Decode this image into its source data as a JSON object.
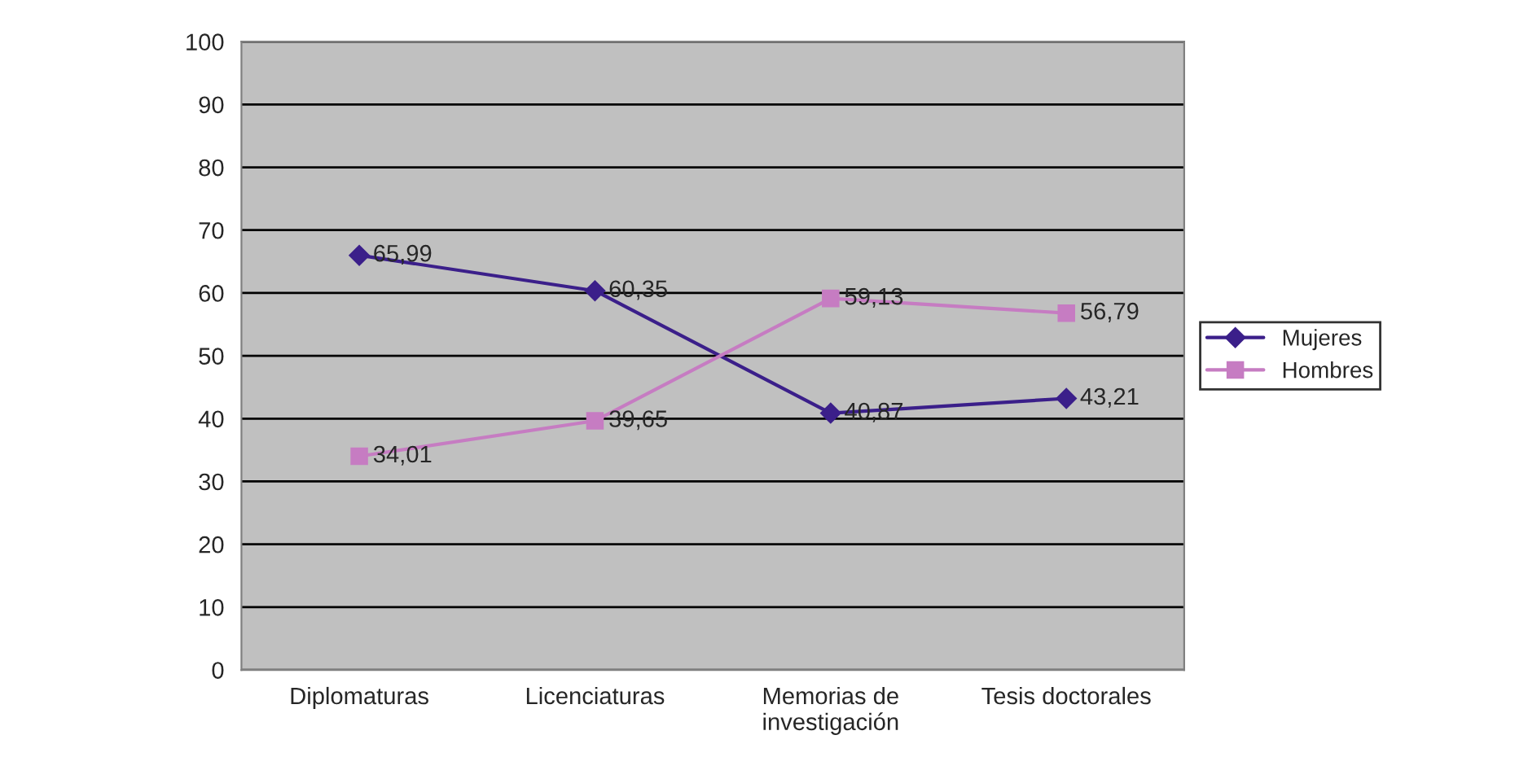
{
  "chart_data": {
    "type": "line",
    "categories": [
      "Diplomaturas",
      "Licenciaturas",
      "Memorias de\ninvestigación",
      "Tesis doctorales"
    ],
    "series": [
      {
        "name": "Mujeres",
        "color": "#3b1f8a",
        "marker": "diamond",
        "values": [
          65.99,
          60.35,
          40.87,
          43.21
        ],
        "value_labels": [
          "65,99",
          "60,35",
          "40,87",
          "43,21"
        ]
      },
      {
        "name": "Hombres",
        "color": "#c67cc2",
        "marker": "square",
        "values": [
          34.01,
          39.65,
          59.13,
          56.79
        ],
        "value_labels": [
          "34,01",
          "39,65",
          "59,13",
          "56,79"
        ]
      }
    ],
    "ylim": [
      0,
      100
    ],
    "yticks": [
      0,
      10,
      20,
      30,
      40,
      50,
      60,
      70,
      80,
      90,
      100
    ],
    "grid": "y",
    "legend": "right",
    "line_style": "solid"
  }
}
